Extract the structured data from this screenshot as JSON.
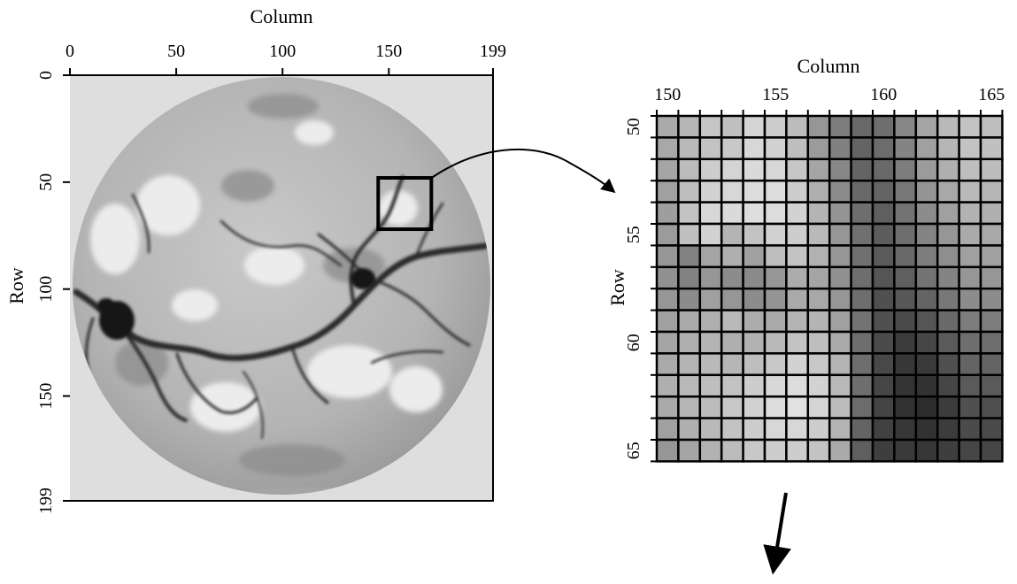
{
  "left_panel": {
    "x_axis_title": "Column",
    "y_axis_title": "Row",
    "x_ticks": [
      "0",
      "50",
      "100",
      "150",
      "199"
    ],
    "y_ticks": [
      "0",
      "50",
      "100",
      "150",
      "199"
    ],
    "x_tick_values": [
      0,
      50,
      100,
      150,
      199
    ],
    "y_tick_values": [
      0,
      50,
      100,
      150,
      199
    ],
    "range": [
      0,
      199
    ],
    "zoom_box": {
      "col_start": 145,
      "col_end": 170,
      "row_start": 48,
      "row_end": 72
    }
  },
  "right_panel": {
    "x_axis_title": "Column",
    "y_axis_title": "Row",
    "x_ticks": [
      "150",
      "155",
      "160",
      "165"
    ],
    "y_ticks": [
      "50",
      "55",
      "60",
      "65"
    ],
    "col_range": [
      150,
      165
    ],
    "row_range": [
      50,
      65
    ],
    "pixel_gray": [
      [
        170,
        182,
        198,
        192,
        212,
        205,
        188,
        150,
        125,
        105,
        110,
        135,
        165,
        185,
        195,
        190
      ],
      [
        168,
        185,
        195,
        200,
        215,
        210,
        190,
        155,
        128,
        100,
        108,
        132,
        160,
        182,
        195,
        192
      ],
      [
        165,
        188,
        205,
        212,
        218,
        215,
        198,
        165,
        135,
        100,
        105,
        125,
        155,
        175,
        190,
        188
      ],
      [
        160,
        190,
        210,
        215,
        220,
        220,
        205,
        175,
        140,
        105,
        100,
        120,
        148,
        168,
        185,
        182
      ],
      [
        158,
        195,
        215,
        218,
        222,
        220,
        210,
        180,
        148,
        110,
        95,
        115,
        140,
        160,
        178,
        175
      ],
      [
        155,
        192,
        210,
        180,
        195,
        210,
        205,
        185,
        150,
        112,
        92,
        110,
        132,
        150,
        170,
        168
      ],
      [
        150,
        130,
        165,
        175,
        160,
        190,
        195,
        178,
        150,
        112,
        90,
        105,
        125,
        142,
        160,
        160
      ],
      [
        145,
        130,
        150,
        140,
        138,
        150,
        172,
        165,
        145,
        110,
        85,
        95,
        115,
        132,
        150,
        150
      ],
      [
        150,
        140,
        160,
        150,
        140,
        148,
        170,
        168,
        150,
        110,
        80,
        88,
        100,
        120,
        140,
        140
      ],
      [
        160,
        170,
        175,
        185,
        172,
        170,
        180,
        180,
        160,
        115,
        80,
        75,
        85,
        105,
        125,
        125
      ],
      [
        165,
        175,
        180,
        175,
        178,
        185,
        195,
        190,
        170,
        110,
        75,
        60,
        70,
        90,
        110,
        110
      ],
      [
        170,
        180,
        185,
        182,
        190,
        200,
        210,
        200,
        180,
        110,
        72,
        55,
        58,
        80,
        100,
        100
      ],
      [
        175,
        185,
        190,
        195,
        205,
        215,
        220,
        210,
        185,
        110,
        70,
        52,
        50,
        70,
        90,
        90
      ],
      [
        170,
        182,
        188,
        200,
        210,
        220,
        225,
        212,
        188,
        108,
        68,
        50,
        45,
        60,
        80,
        80
      ],
      [
        160,
        175,
        185,
        195,
        205,
        215,
        215,
        205,
        180,
        100,
        65,
        55,
        50,
        60,
        75,
        75
      ],
      [
        150,
        165,
        178,
        188,
        200,
        205,
        205,
        195,
        170,
        95,
        62,
        58,
        55,
        62,
        70,
        70
      ]
    ]
  }
}
